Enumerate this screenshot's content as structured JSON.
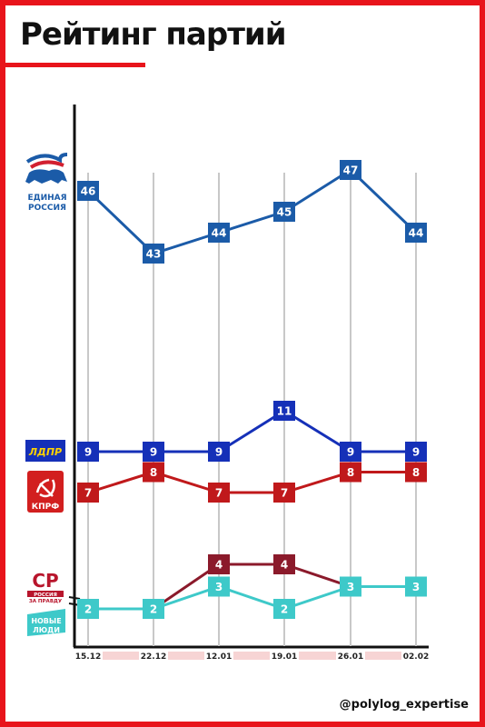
{
  "title": "Рейтинг партий",
  "handle": "@polylog_expertise",
  "colors": {
    "frame": "#e8141b",
    "grid": "#c8c8c8",
    "date_stripe": "#f7d4d4"
  },
  "logos": {
    "er": {
      "line1": "ЕДИНАЯ",
      "line2": "РОССИЯ"
    },
    "ldpr": "ЛДПР",
    "kprf": "КПРФ",
    "sr": {
      "mark": "СР",
      "line1": "РОССИЯ",
      "line2": "ЗА ПРАВДУ"
    },
    "nl": {
      "line1": "НОВЫЕ",
      "line2": "ЛЮДИ"
    }
  },
  "chart_data": {
    "type": "line",
    "x": [
      "15.12",
      "22.12",
      "12.01",
      "19.01",
      "26.01",
      "02.02"
    ],
    "series": [
      {
        "name": "ЕДИНАЯ РОССИЯ",
        "values": [
          46,
          43,
          44,
          45,
          47,
          44
        ],
        "color": "#1b5ba8"
      },
      {
        "name": "ЛДПР",
        "values": [
          9,
          9,
          9,
          11,
          9,
          9
        ],
        "color": "#1530b8"
      },
      {
        "name": "КПРФ",
        "values": [
          7,
          8,
          7,
          7,
          8,
          8
        ],
        "color": "#c0191b"
      },
      {
        "name": "СР",
        "values": [
          2,
          2,
          4,
          4,
          3,
          3
        ],
        "color": "#8b1a2b"
      },
      {
        "name": "НОВЫЕ ЛЮДИ",
        "values": [
          2,
          2,
          3,
          2,
          3,
          3
        ],
        "color": "#3ec9c9"
      }
    ],
    "grid": true,
    "legend": "left"
  }
}
